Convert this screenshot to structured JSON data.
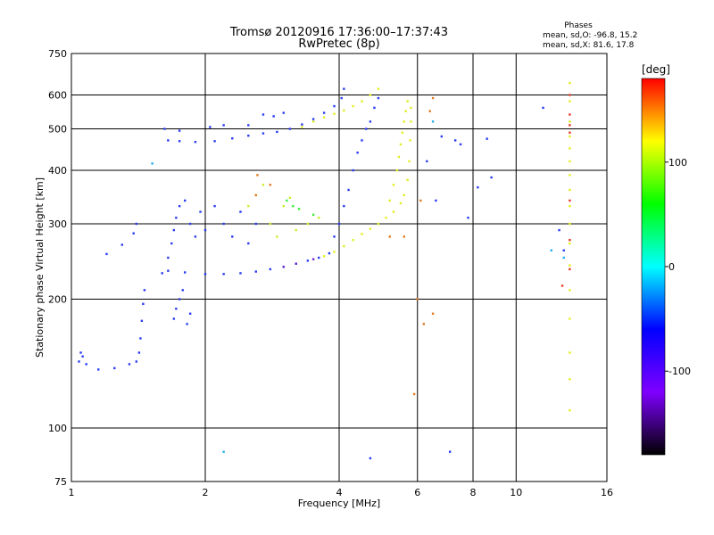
{
  "chart_data": {
    "type": "scatter",
    "title": "Tromsø 20120916 17:36:00–17:37:43",
    "subtitle": "RwPretec (8p)",
    "stats_header": "Phases",
    "stats_line_o": "mean, sd,O:  -96.8, 15.2",
    "stats_line_x": "mean, sd,X:   81.6, 17.8",
    "xlabel": "Frequency [MHz]",
    "ylabel": "Stationary phase Virtual Height [km]",
    "x_scale": "log",
    "y_scale": "log",
    "xlim": [
      1,
      16
    ],
    "ylim": [
      75,
      750
    ],
    "x_ticks": [
      {
        "value": 1,
        "label": "1"
      },
      {
        "value": 2,
        "label": "2"
      },
      {
        "value": 4,
        "label": "4"
      },
      {
        "value": 6,
        "label": "6"
      },
      {
        "value": 8,
        "label": "8"
      },
      {
        "value": 10,
        "label": "10"
      },
      {
        "value": 16,
        "label": "16"
      }
    ],
    "y_ticks": [
      {
        "value": 75,
        "label": "75"
      },
      {
        "value": 100,
        "label": "100"
      },
      {
        "value": 200,
        "label": "200"
      },
      {
        "value": 300,
        "label": "300"
      },
      {
        "value": 400,
        "label": "400"
      },
      {
        "value": 500,
        "label": "500"
      },
      {
        "value": 600,
        "label": "600"
      },
      {
        "value": 750,
        "label": "750"
      }
    ],
    "x_gridlines": [
      2,
      4,
      6,
      8,
      10
    ],
    "y_gridlines": [
      100,
      200,
      300,
      400,
      500,
      600
    ],
    "grid": true,
    "colorbar": {
      "label": "[deg]",
      "min": -180,
      "max": 180,
      "ticks": [
        {
          "value": 100,
          "label": "100"
        },
        {
          "value": 0,
          "label": "0"
        },
        {
          "value": -100,
          "label": "-100"
        }
      ],
      "colormap": [
        "#000000",
        "#7f00ff",
        "#0000ff",
        "#00ffff",
        "#00ff00",
        "#ffff00",
        "#ff0000"
      ]
    },
    "series": [
      {
        "color": "#2a3cf2",
        "points": [
          [
            1.04,
            143
          ],
          [
            1.05,
            150
          ],
          [
            1.06,
            147
          ],
          [
            1.08,
            141
          ],
          [
            1.15,
            137
          ],
          [
            1.25,
            138
          ],
          [
            1.35,
            141
          ],
          [
            1.4,
            143
          ],
          [
            1.42,
            150
          ],
          [
            1.43,
            162
          ],
          [
            1.44,
            178
          ],
          [
            1.45,
            195
          ],
          [
            1.46,
            210
          ],
          [
            1.2,
            255
          ],
          [
            1.3,
            268
          ],
          [
            1.38,
            285
          ],
          [
            1.4,
            300
          ]
        ]
      },
      {
        "color": "#2a3cf2",
        "points": [
          [
            1.6,
            230
          ],
          [
            1.65,
            250
          ],
          [
            1.68,
            270
          ],
          [
            1.7,
            290
          ],
          [
            1.72,
            310
          ],
          [
            1.75,
            330
          ],
          [
            1.8,
            340
          ],
          [
            1.85,
            300
          ],
          [
            1.9,
            280
          ],
          [
            1.95,
            320
          ],
          [
            2.0,
            290
          ],
          [
            2.1,
            330
          ],
          [
            2.2,
            300
          ],
          [
            2.3,
            280
          ],
          [
            2.4,
            320
          ],
          [
            2.5,
            270
          ],
          [
            2.6,
            300
          ]
        ]
      },
      {
        "color": "#2a3cf2",
        "points": [
          [
            1.65,
            233
          ],
          [
            1.8,
            231
          ],
          [
            2.0,
            229
          ],
          [
            2.2,
            229
          ],
          [
            2.4,
            230
          ],
          [
            2.6,
            232
          ],
          [
            2.8,
            235
          ],
          [
            3.0,
            238
          ],
          [
            3.2,
            242
          ],
          [
            3.4,
            246
          ],
          [
            3.6,
            250
          ],
          [
            3.8,
            256
          ]
        ]
      },
      {
        "color": "#2a3cf2",
        "points": [
          [
            1.65,
            470
          ],
          [
            1.75,
            468
          ],
          [
            1.9,
            466
          ],
          [
            2.1,
            468
          ],
          [
            2.3,
            475
          ],
          [
            2.5,
            482
          ],
          [
            2.7,
            488
          ],
          [
            2.9,
            492
          ],
          [
            3.1,
            500
          ],
          [
            3.3,
            512
          ],
          [
            3.5,
            527
          ],
          [
            3.7,
            545
          ],
          [
            3.9,
            565
          ],
          [
            4.05,
            590
          ],
          [
            4.1,
            620
          ]
        ]
      },
      {
        "color": "#2a3cf2",
        "points": [
          [
            1.62,
            500
          ],
          [
            1.75,
            495
          ],
          [
            2.05,
            505
          ],
          [
            2.2,
            510
          ],
          [
            2.5,
            510
          ],
          [
            2.7,
            540
          ],
          [
            2.85,
            535
          ],
          [
            3.0,
            545
          ]
        ]
      },
      {
        "color": "#2a3cf2",
        "points": [
          [
            3.9,
            280
          ],
          [
            4.0,
            300
          ],
          [
            4.1,
            330
          ],
          [
            4.2,
            360
          ],
          [
            4.3,
            400
          ],
          [
            4.4,
            440
          ],
          [
            4.5,
            470
          ],
          [
            4.6,
            500
          ],
          [
            4.7,
            520
          ],
          [
            4.8,
            560
          ],
          [
            4.9,
            590
          ]
        ]
      },
      {
        "color": "#2a3cf2",
        "points": [
          [
            1.7,
            180
          ],
          [
            1.72,
            190
          ],
          [
            1.75,
            200
          ],
          [
            1.78,
            210
          ],
          [
            1.82,
            175
          ],
          [
            1.85,
            185
          ]
        ]
      },
      {
        "color": "#e0ef22",
        "points": [
          [
            3.7,
            252
          ],
          [
            3.9,
            258
          ],
          [
            4.1,
            266
          ],
          [
            4.3,
            275
          ],
          [
            4.5,
            284
          ],
          [
            4.7,
            292
          ],
          [
            4.9,
            300
          ],
          [
            5.1,
            310
          ],
          [
            5.3,
            320
          ],
          [
            5.5,
            335
          ],
          [
            5.6,
            350
          ],
          [
            5.7,
            380
          ],
          [
            5.75,
            420
          ],
          [
            5.78,
            470
          ],
          [
            5.8,
            520
          ],
          [
            5.8,
            560
          ]
        ]
      },
      {
        "color": "#e0ef22",
        "points": [
          [
            5.2,
            340
          ],
          [
            5.3,
            370
          ],
          [
            5.4,
            400
          ],
          [
            5.45,
            430
          ],
          [
            5.5,
            460
          ],
          [
            5.55,
            490
          ],
          [
            5.6,
            520
          ],
          [
            5.65,
            550
          ],
          [
            5.7,
            580
          ]
        ]
      },
      {
        "color": "#c8ef2a",
        "points": [
          [
            2.5,
            330
          ],
          [
            2.6,
            350
          ],
          [
            2.7,
            370
          ],
          [
            2.8,
            300
          ],
          [
            2.9,
            280
          ],
          [
            3.0,
            330
          ],
          [
            3.1,
            345
          ],
          [
            3.2,
            290
          ],
          [
            3.4,
            300
          ],
          [
            3.6,
            310
          ]
        ]
      },
      {
        "color": "#e0ef22",
        "points": [
          [
            3.3,
            505
          ],
          [
            3.5,
            520
          ],
          [
            3.7,
            532
          ],
          [
            3.9,
            542
          ],
          [
            4.1,
            552
          ],
          [
            4.3,
            565
          ],
          [
            4.5,
            580
          ],
          [
            4.7,
            600
          ],
          [
            4.9,
            620
          ]
        ]
      },
      {
        "color": "#3aef3a",
        "points": [
          [
            3.05,
            340
          ],
          [
            3.15,
            330
          ],
          [
            3.25,
            325
          ],
          [
            3.5,
            315
          ]
        ]
      },
      {
        "color": "#e07a22",
        "points": [
          [
            2.6,
            350
          ],
          [
            2.62,
            390
          ],
          [
            2.8,
            370
          ],
          [
            6.4,
            550
          ],
          [
            6.5,
            590
          ],
          [
            6.1,
            340
          ],
          [
            5.2,
            280
          ],
          [
            5.6,
            280
          ],
          [
            6.0,
            200
          ],
          [
            6.5,
            185
          ],
          [
            6.2,
            175
          ],
          [
            5.9,
            120
          ]
        ]
      },
      {
        "color": "#2a3cf2",
        "points": [
          [
            6.3,
            420
          ],
          [
            6.6,
            340
          ],
          [
            6.8,
            480
          ],
          [
            7.3,
            470
          ],
          [
            7.5,
            460
          ],
          [
            7.8,
            310
          ],
          [
            8.2,
            365
          ],
          [
            8.8,
            385
          ],
          [
            12.5,
            290
          ],
          [
            11.5,
            560
          ],
          [
            12.8,
            260
          ],
          [
            8.6,
            474
          ],
          [
            4.7,
            85
          ],
          [
            7.1,
            88
          ]
        ]
      },
      {
        "color": "#22aef2",
        "points": [
          [
            2.2,
            88
          ],
          [
            1.52,
            415
          ],
          [
            6.5,
            520
          ],
          [
            12.0,
            260
          ],
          [
            12.8,
            250
          ]
        ]
      },
      {
        "color": "#e2ef22",
        "points": [
          [
            13.2,
            640
          ],
          [
            13.2,
            580
          ],
          [
            13.2,
            520
          ],
          [
            13.2,
            480
          ],
          [
            13.2,
            450
          ],
          [
            13.2,
            420
          ],
          [
            13.2,
            390
          ],
          [
            13.2,
            360
          ],
          [
            13.2,
            330
          ],
          [
            13.2,
            300
          ],
          [
            13.2,
            270
          ],
          [
            13.2,
            240
          ],
          [
            13.2,
            210
          ],
          [
            13.2,
            180
          ],
          [
            13.2,
            150
          ],
          [
            13.2,
            130
          ],
          [
            13.2,
            110
          ]
        ]
      },
      {
        "color": "#e83a2a",
        "points": [
          [
            13.2,
            600
          ],
          [
            13.2,
            540
          ],
          [
            13.2,
            510
          ],
          [
            13.2,
            490
          ],
          [
            13.2,
            340
          ],
          [
            13.2,
            275
          ],
          [
            13.2,
            235
          ],
          [
            12.7,
            215
          ]
        ]
      },
      {
        "color": "#6a2ad0",
        "points": [
          [
            3.0,
            238
          ],
          [
            3.2,
            242
          ],
          [
            3.5,
            248
          ]
        ]
      }
    ]
  }
}
